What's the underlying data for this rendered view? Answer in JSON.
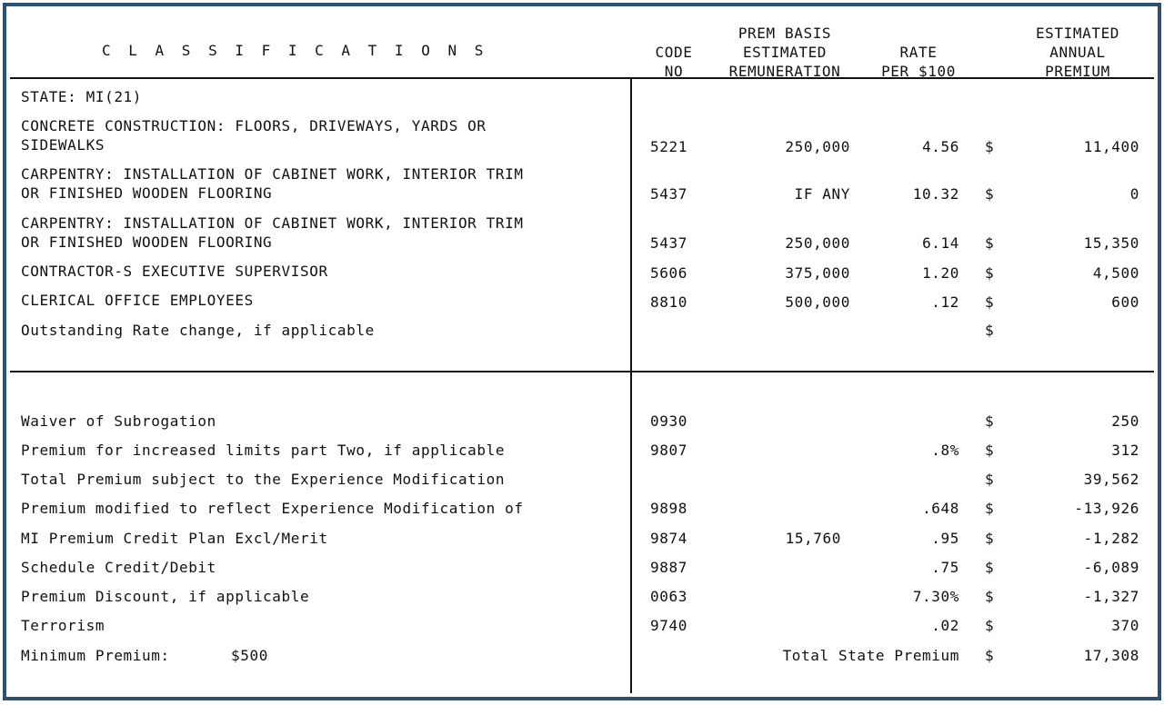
{
  "header": {
    "classifications": "C L A S S I F I C A T I O N S",
    "code_line1": "CODE",
    "code_line2": "NO",
    "basis_line1": "PREM BASIS",
    "basis_line2": "ESTIMATED",
    "basis_line3": "REMUNERATION",
    "rate_line1": "RATE",
    "rate_line2": "PER $100",
    "premium_line1": "ESTIMATED",
    "premium_line2": "ANNUAL",
    "premium_line3": "PREMIUM"
  },
  "state": "STATE: MI(21)",
  "classes": [
    {
      "line1": "CONCRETE CONSTRUCTION: FLOORS, DRIVEWAYS, YARDS OR",
      "line2": "SIDEWALKS",
      "code": "5221",
      "basis": "250,000",
      "rate": "4.56",
      "dollar": "$",
      "premium": "11,400"
    },
    {
      "line1": "CARPENTRY: INSTALLATION OF CABINET WORK, INTERIOR TRIM",
      "line2": "OR FINISHED WOODEN FLOORING",
      "code": "5437",
      "basis": "IF ANY",
      "rate": "10.32",
      "dollar": "$",
      "premium": "0"
    },
    {
      "line1": "CARPENTRY: INSTALLATION OF CABINET WORK, INTERIOR TRIM",
      "line2": "OR FINISHED WOODEN FLOORING",
      "code": "5437",
      "basis": "250,000",
      "rate": "6.14",
      "dollar": "$",
      "premium": "15,350"
    },
    {
      "line1": "CONTRACTOR-S EXECUTIVE SUPERVISOR",
      "code": "5606",
      "basis": "375,000",
      "rate": "1.20",
      "dollar": "$",
      "premium": "4,500"
    },
    {
      "line1": "CLERICAL OFFICE EMPLOYEES",
      "code": "8810",
      "basis": "500,000",
      "rate": ".12",
      "dollar": "$",
      "premium": "600"
    },
    {
      "line1": "Outstanding Rate change, if applicable",
      "dollar": "$"
    }
  ],
  "modifiers": [
    {
      "label": "Waiver of Subrogation",
      "code": "0930",
      "basis": "",
      "rate": "",
      "dollar": "$",
      "premium": "250"
    },
    {
      "label": "Premium for increased limits part Two, if applicable",
      "code": "9807",
      "basis": "",
      "rate": ".8%",
      "dollar": "$",
      "premium": "312"
    },
    {
      "label": "Total Premium subject to the Experience Modification",
      "code": "",
      "basis": "",
      "rate": "",
      "dollar": "$",
      "premium": "39,562"
    },
    {
      "label": "Premium modified to reflect Experience Modification of",
      "code": "9898",
      "basis": "",
      "rate": ".648",
      "dollar": "$",
      "premium": "-13,926"
    },
    {
      "label": "MI Premium Credit Plan Excl/Merit",
      "code": "9874",
      "basis": "15,760",
      "rate": ".95",
      "dollar": "$",
      "premium": "-1,282"
    },
    {
      "label": "Schedule Credit/Debit",
      "code": "9887",
      "basis": "",
      "rate": ".75",
      "dollar": "$",
      "premium": "-6,089"
    },
    {
      "label": "Premium Discount, if applicable",
      "code": "0063",
      "basis": "",
      "rate": "7.30%",
      "dollar": "$",
      "premium": "-1,327"
    },
    {
      "label": "Terrorism",
      "code": "9740",
      "basis": "",
      "rate": ".02",
      "dollar": "$",
      "premium": "370"
    }
  ],
  "footer": {
    "minimum_label": "Minimum Premium:",
    "minimum_value": "$500",
    "total_label": "Total State Premium",
    "dollar": "$",
    "total_value": "17,308"
  }
}
